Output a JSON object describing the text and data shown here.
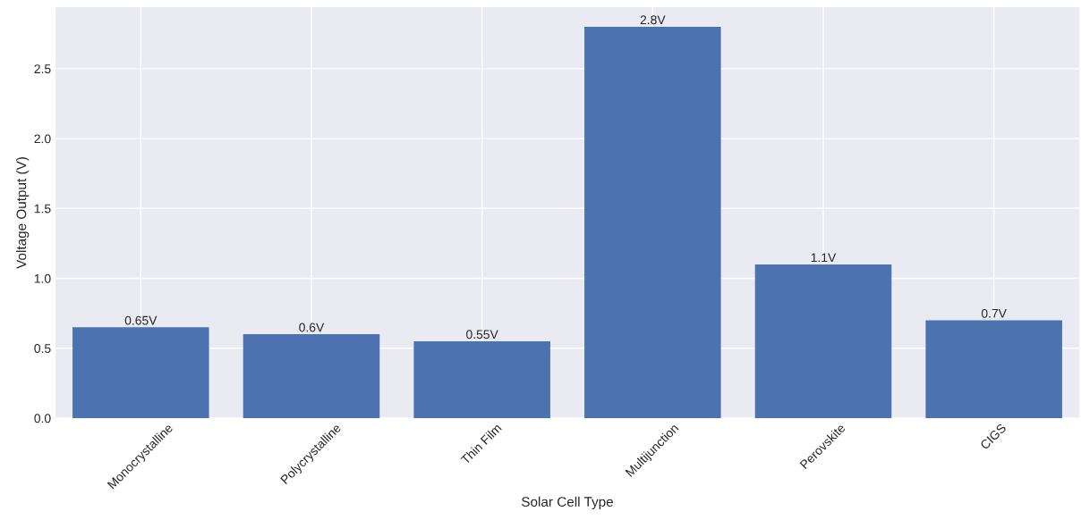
{
  "chart_data": {
    "type": "bar",
    "xlabel": "Solar Cell Type",
    "ylabel": "Voltage Output (V)",
    "categories": [
      "Monocrystalline",
      "Polycrystalline",
      "Thin Film",
      "Multijunction",
      "Perovskite",
      "CIGS"
    ],
    "values": [
      0.65,
      0.6,
      0.55,
      2.8,
      1.1,
      0.7
    ],
    "value_labels": [
      "0.65V",
      "0.6V",
      "0.55V",
      "2.8V",
      "1.1V",
      "0.7V"
    ],
    "color": "#4c72b0",
    "ylim": [
      0,
      2.94
    ],
    "yticks": [
      {
        "value": 0,
        "label": "0.0"
      },
      {
        "value": 0.5,
        "label": "0.5"
      },
      {
        "value": 1,
        "label": "1.0"
      },
      {
        "value": 1.5,
        "label": "1.5"
      },
      {
        "value": 2,
        "label": "2.0"
      },
      {
        "value": 2.5,
        "label": "2.5"
      }
    ],
    "grid": true
  }
}
